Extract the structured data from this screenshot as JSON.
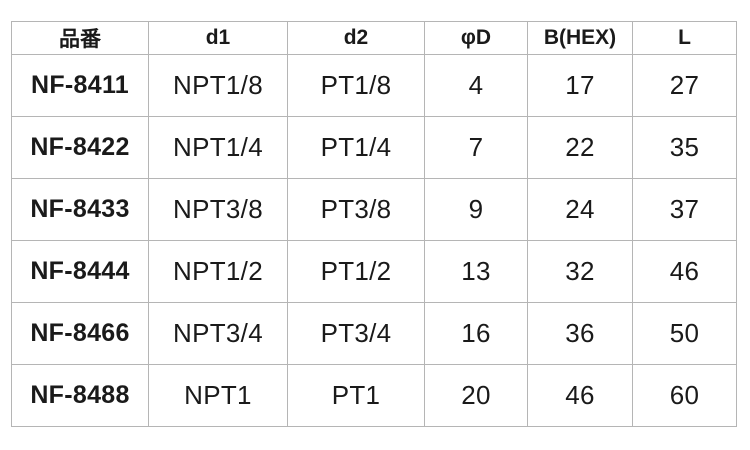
{
  "table": {
    "headers": [
      "品番",
      "d1",
      "d2",
      "φD",
      "B(HEX)",
      "L"
    ],
    "rows": [
      [
        "NF-8411",
        "NPT1/8",
        "PT1/8",
        "4",
        "17",
        "27"
      ],
      [
        "NF-8422",
        "NPT1/4",
        "PT1/4",
        "7",
        "22",
        "35"
      ],
      [
        "NF-8433",
        "NPT3/8",
        "PT3/8",
        "9",
        "24",
        "37"
      ],
      [
        "NF-8444",
        "NPT1/2",
        "PT1/2",
        "13",
        "32",
        "46"
      ],
      [
        "NF-8466",
        "NPT3/4",
        "PT3/4",
        "16",
        "36",
        "50"
      ],
      [
        "NF-8488",
        "NPT1",
        "PT1",
        "20",
        "46",
        "60"
      ]
    ]
  }
}
